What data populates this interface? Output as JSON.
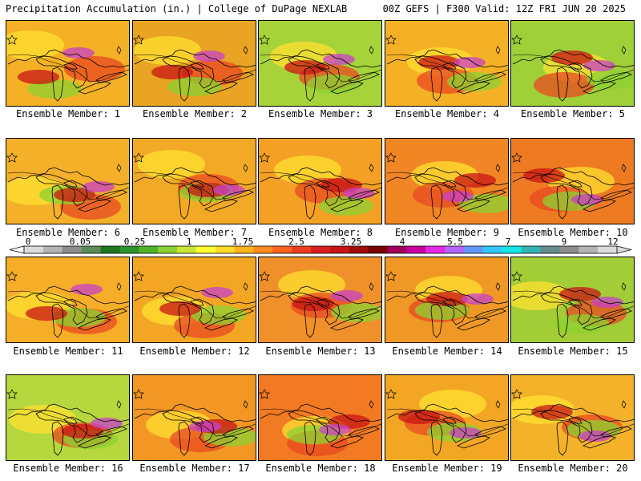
{
  "header": {
    "left_title": "Precipitation Accumulation (in.) | College of DuPage NEXLAB",
    "right_title": "00Z GEFS | F300 Valid: 12Z FRI JUN 20 2025"
  },
  "panels": [
    {
      "label": "Ensemble Member: 1"
    },
    {
      "label": "Ensemble Member: 2"
    },
    {
      "label": "Ensemble Member: 3"
    },
    {
      "label": "Ensemble Member: 4"
    },
    {
      "label": "Ensemble Member: 5"
    },
    {
      "label": "Ensemble Member: 6"
    },
    {
      "label": "Ensemble Member: 7"
    },
    {
      "label": "Ensemble Member: 8"
    },
    {
      "label": "Ensemble Member: 9"
    },
    {
      "label": "Ensemble Member: 10"
    },
    {
      "label": "Ensemble Member: 11"
    },
    {
      "label": "Ensemble Member: 12"
    },
    {
      "label": "Ensemble Member: 13"
    },
    {
      "label": "Ensemble Member: 14"
    },
    {
      "label": "Ensemble Member: 15"
    },
    {
      "label": "Ensemble Member: 16"
    },
    {
      "label": "Ensemble Member: 17"
    },
    {
      "label": "Ensemble Member: 18"
    },
    {
      "label": "Ensemble Member: 19"
    },
    {
      "label": "Ensemble Member: 20"
    }
  ],
  "colorbar": {
    "tick_labels": [
      "0",
      "0.05",
      "0.25",
      "1",
      "1.75",
      "2.5",
      "3.25",
      "4",
      "5.5",
      "7",
      "9",
      "12"
    ],
    "colors": [
      "#dcdcdc",
      "#b4b4b4",
      "#8c8c8c",
      "#5a8c5a",
      "#1e781e",
      "#2a962a",
      "#50b428",
      "#8cd232",
      "#c8e632",
      "#ffff32",
      "#ffdc28",
      "#ffb41e",
      "#ff8c1e",
      "#ff641e",
      "#f03c1e",
      "#dc1e1e",
      "#c81414",
      "#a00a0a",
      "#780000",
      "#a0005a",
      "#c800a0",
      "#e628e6",
      "#b464ff",
      "#6496ff",
      "#32c8ff",
      "#14e6e6",
      "#32b4b4",
      "#648c8c",
      "#8c8c8c",
      "#b4b4b4",
      "#dcdcdc"
    ]
  }
}
